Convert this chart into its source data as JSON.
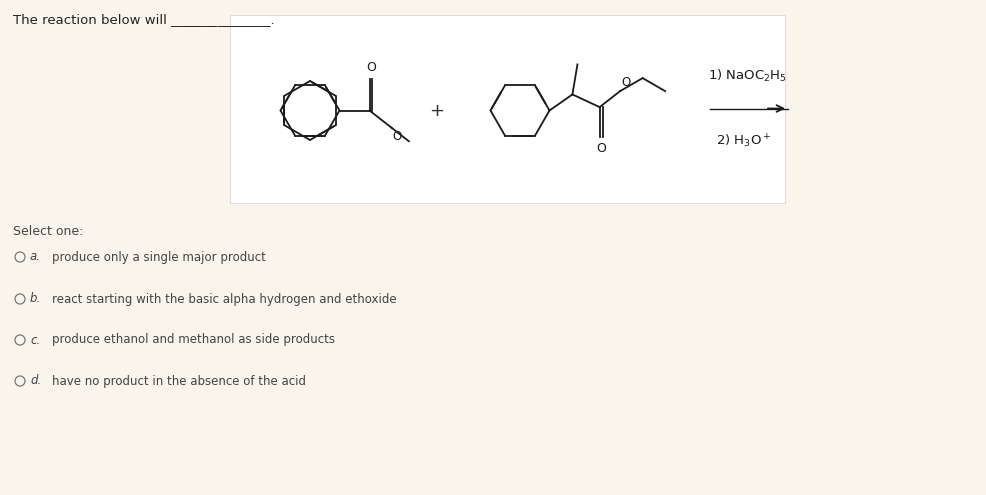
{
  "background_color": "#faf5ec",
  "reaction_box_bg": "#ffffff",
  "reaction_box_edge": "#dddddd",
  "title_text": "The reaction below will _______________.",
  "title_fontsize": 9.5,
  "title_color": "#222222",
  "reagents_line1": "1) NaOC",
  "reagents_sub1": "2",
  "reagents_mid1": "H",
  "reagents_sub2": "5",
  "reagents_line2": "2) H",
  "reagents_sub3": "3",
  "reagents_mid2": "O",
  "reagents_sup1": "+",
  "reagents_fontsize": 10,
  "select_one_text": "Select one:",
  "select_one_fontsize": 9,
  "options": [
    {
      "label": "a.",
      "text": "produce only a single major product"
    },
    {
      "label": "b.",
      "text": "react starting with the basic alpha hydrogen and ethoxide"
    },
    {
      "label": "c.",
      "text": "produce ethanol and methanol as side products"
    },
    {
      "label": "d.",
      "text": "have no product in the absence of the acid"
    }
  ],
  "option_fontsize": 9,
  "text_color": "#444444",
  "bond_color": "#1a1a1a",
  "bond_lw": 1.3
}
